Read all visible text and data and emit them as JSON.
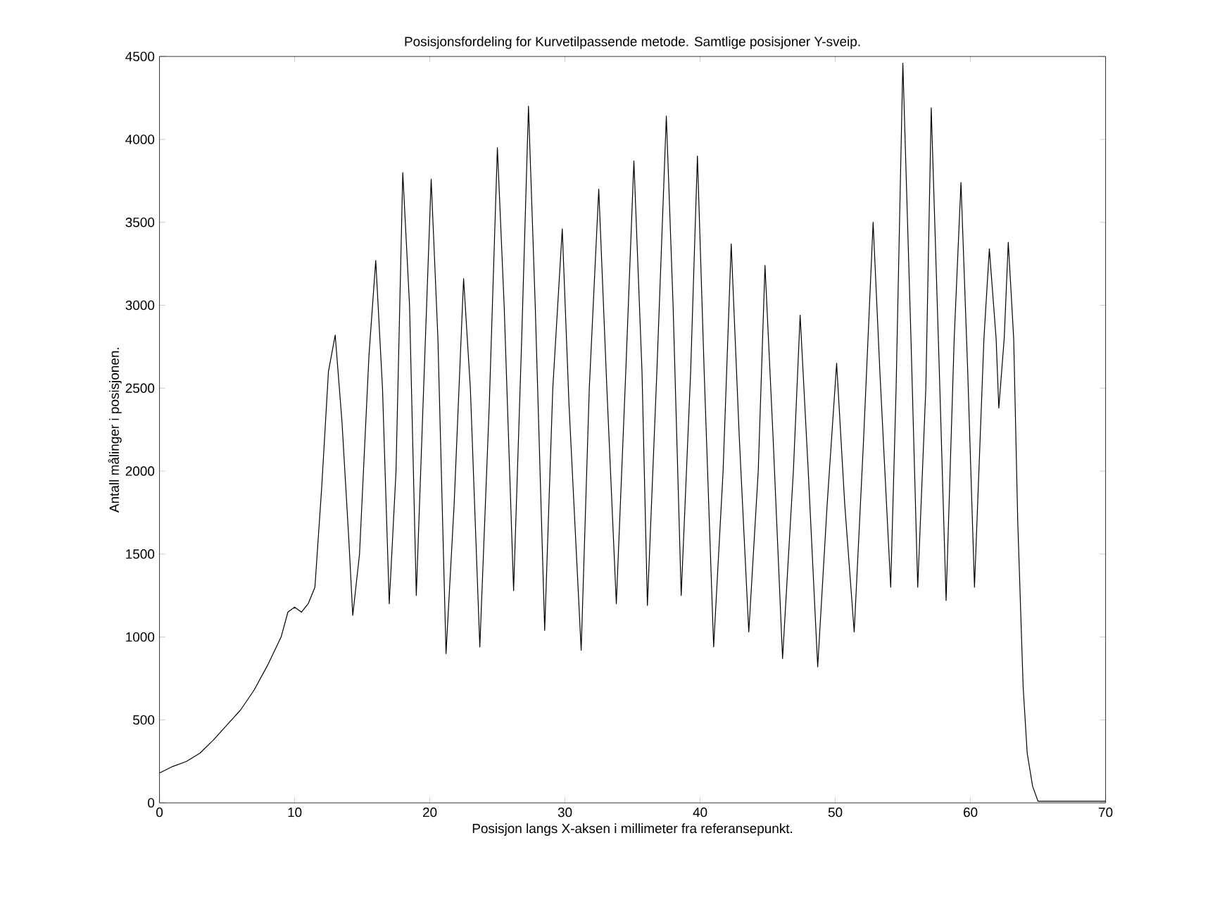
{
  "chart_data": {
    "type": "line",
    "title": "Posisjonsfordeling for Kurvetilpassende metode. Samtlige posisjoner Y-sveip.",
    "xlabel": "Posisjon langs X-aksen i millimeter fra referansepunkt.",
    "ylabel": "Antall målinger i posisjonen.",
    "x": [
      0,
      1,
      2,
      3,
      4,
      5,
      6,
      7,
      8,
      9,
      9.5,
      10,
      10.5,
      11,
      11.5,
      12,
      12.5,
      13,
      13.5,
      14,
      14.3,
      14.8,
      15.5,
      16,
      16.5,
      17,
      17.5,
      18,
      18.5,
      19,
      19.5,
      20.1,
      20.6,
      21.2,
      21.8,
      22.5,
      23,
      23.7,
      24.4,
      25,
      25.5,
      26.2,
      26.8,
      27.3,
      27.8,
      28.5,
      29.1,
      29.8,
      30.3,
      31.2,
      31.8,
      32.5,
      33.1,
      33.8,
      34.5,
      35.1,
      35.7,
      36.1,
      36.8,
      37.5,
      38,
      38.6,
      39.3,
      39.8,
      40.3,
      41,
      41.7,
      42.3,
      42.9,
      43.6,
      44.3,
      44.8,
      45.4,
      46.1,
      46.9,
      47.4,
      48,
      48.7,
      49.4,
      50.1,
      50.7,
      51.4,
      52.1,
      52.8,
      53.3,
      54.1,
      54.5,
      55,
      55.6,
      56.1,
      56.7,
      57.1,
      57.7,
      58.2,
      58.8,
      59.3,
      59.8,
      60.3,
      61,
      61.4,
      61.9,
      62.1,
      62.5,
      62.8,
      63.2,
      63.5,
      63.9,
      64.2,
      64.6,
      65,
      66,
      70
    ],
    "series": [
      {
        "color": "#000000",
        "values": [
          180,
          220,
          250,
          300,
          380,
          470,
          560,
          680,
          830,
          1000,
          1150,
          1180,
          1150,
          1200,
          1300,
          1900,
          2600,
          2820,
          2300,
          1600,
          1130,
          1500,
          2700,
          3270,
          2500,
          1200,
          2000,
          3800,
          3000,
          1250,
          2400,
          3760,
          2800,
          900,
          1800,
          3160,
          2500,
          940,
          2400,
          3950,
          3000,
          1280,
          2800,
          4200,
          3000,
          1040,
          2500,
          3460,
          2400,
          920,
          2500,
          3700,
          2500,
          1200,
          2600,
          3870,
          2600,
          1190,
          2600,
          4140,
          3000,
          1250,
          2600,
          3900,
          2600,
          940,
          2000,
          3370,
          2200,
          1030,
          2000,
          3240,
          2200,
          870,
          2000,
          2940,
          2000,
          820,
          1800,
          2650,
          1800,
          1030,
          2200,
          3500,
          2600,
          1300,
          2500,
          4460,
          2800,
          1300,
          2500,
          4190,
          2600,
          1220,
          2800,
          3740,
          2600,
          1300,
          2800,
          3340,
          2800,
          2380,
          2800,
          3380,
          2800,
          1700,
          700,
          300,
          100,
          10,
          10,
          10
        ]
      }
    ],
    "xlim": [
      0,
      70
    ],
    "ylim": [
      0,
      4500
    ],
    "xticks": [
      0,
      10,
      20,
      30,
      40,
      50,
      60,
      70
    ],
    "yticks": [
      0,
      500,
      1000,
      1500,
      2000,
      2500,
      3000,
      3500,
      4000,
      4500
    ],
    "grid": false,
    "marker": "none",
    "line_style": "solid"
  }
}
